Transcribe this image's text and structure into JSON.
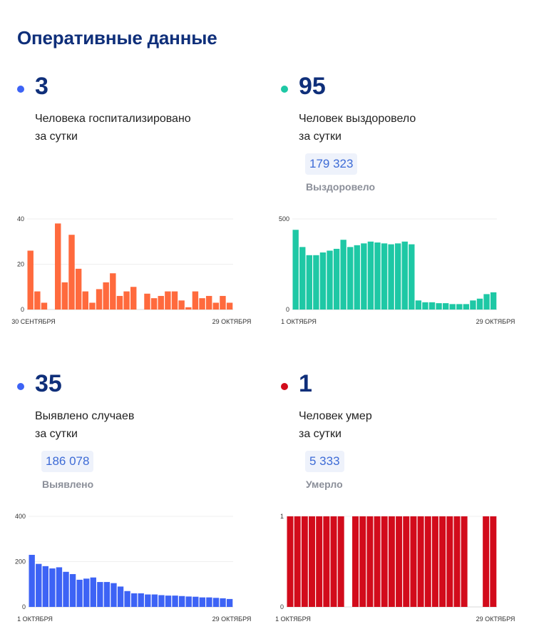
{
  "page_title": "Оперативные данные",
  "colors": {
    "title": "#0f2f7a",
    "hospitalized": "#ff6a3d",
    "recovered": "#1ec8a5",
    "cases": "#3d63f5",
    "deaths": "#d20b1b"
  },
  "panels": {
    "hospitalized": {
      "number": "3",
      "caption_line1": "Человека госпитализировано",
      "caption_line2": "за сутки"
    },
    "recovered": {
      "number": "95",
      "caption_line1": "Человек выздоровело",
      "caption_line2": "за сутки",
      "total": "179 323",
      "total_label": "Выздоровело"
    },
    "cases": {
      "number": "35",
      "caption_line1": "Выявлено случаев",
      "caption_line2": "за сутки",
      "total": "186 078",
      "total_label": "Выявлено"
    },
    "deaths": {
      "number": "1",
      "caption_line1": "Человек умер",
      "caption_line2": "за сутки",
      "total": "5 333",
      "total_label": "Умерло"
    }
  },
  "chart_data": [
    {
      "id": "hospitalized",
      "type": "bar",
      "color": "#ff6a3d",
      "x_start_label": "30 СЕНТЯБРЯ",
      "x_end_label": "29 ОКТЯБРЯ",
      "y_ticks": [
        0,
        20,
        40
      ],
      "ylim": [
        0,
        40
      ],
      "values": [
        26,
        8,
        3,
        null,
        38,
        12,
        33,
        18,
        8,
        3,
        9,
        12,
        16,
        6,
        8,
        10,
        null,
        7,
        5,
        6,
        8,
        8,
        4,
        1,
        8,
        5,
        6,
        3,
        6,
        3
      ]
    },
    {
      "id": "recovered",
      "type": "bar",
      "color": "#1ec8a5",
      "x_start_label": "1 ОКТЯБРЯ",
      "x_end_label": "29 ОКТЯБРЯ",
      "y_ticks": [
        0,
        500
      ],
      "ylim": [
        0,
        500
      ],
      "values": [
        440,
        345,
        300,
        300,
        315,
        325,
        335,
        385,
        345,
        355,
        365,
        375,
        370,
        365,
        360,
        365,
        375,
        360,
        50,
        40,
        40,
        35,
        35,
        30,
        30,
        30,
        50,
        60,
        85,
        95
      ]
    },
    {
      "id": "cases",
      "type": "bar",
      "color": "#3d63f5",
      "x_start_label": "1 ОКТЯБРЯ",
      "x_end_label": "29 ОКТЯБРЯ",
      "y_ticks": [
        0,
        200,
        400
      ],
      "ylim": [
        0,
        400
      ],
      "values": [
        230,
        190,
        180,
        170,
        175,
        155,
        145,
        120,
        125,
        130,
        110,
        110,
        105,
        90,
        70,
        60,
        60,
        55,
        55,
        52,
        50,
        50,
        48,
        46,
        45,
        42,
        42,
        40,
        38,
        35
      ]
    },
    {
      "id": "deaths",
      "type": "bar",
      "color": "#d20b1b",
      "x_start_label": "1 ОКТЯБРЯ",
      "x_end_label": "29 ОКТЯБРЯ",
      "y_ticks": [
        0,
        1
      ],
      "ylim": [
        0,
        1
      ],
      "values": [
        1,
        1,
        1,
        1,
        1,
        1,
        1,
        1,
        0,
        1,
        1,
        1,
        1,
        1,
        1,
        1,
        1,
        1,
        1,
        1,
        1,
        1,
        1,
        1,
        1,
        0,
        0,
        1,
        1
      ]
    }
  ]
}
